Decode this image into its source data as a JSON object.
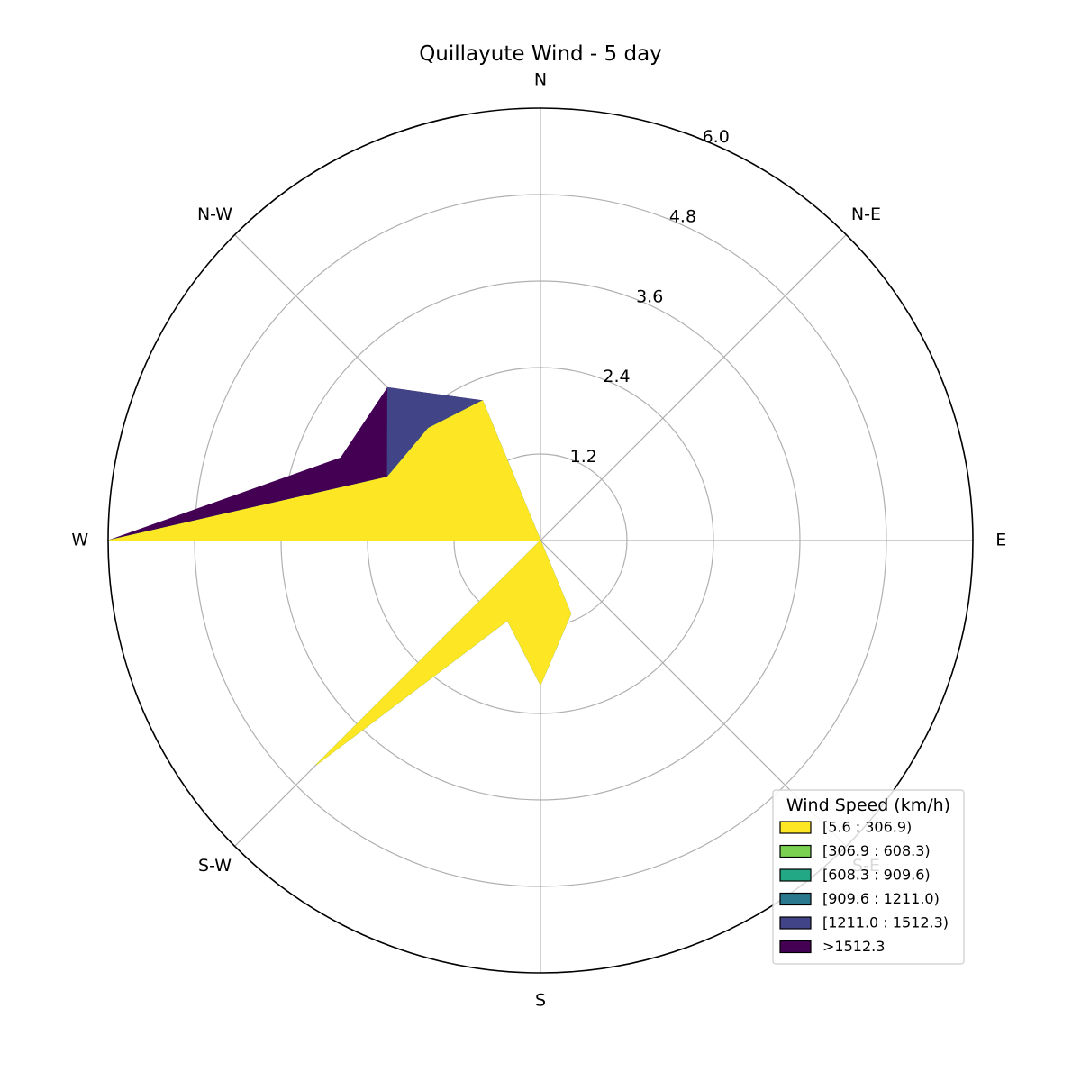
{
  "chart_data": {
    "type": "windrose",
    "title": "Quillayute Wind - 5 day",
    "direction_labels": [
      "N",
      "N-E",
      "E",
      "S-E",
      "S",
      "S-W",
      "W",
      "N-W"
    ],
    "radial_ticks": [
      "1.2",
      "2.4",
      "3.6",
      "4.8",
      "6.0"
    ],
    "rmax": 6.0,
    "grid": true,
    "legend": {
      "title": "Wind Speed (km/h)",
      "placement": "bottom-right",
      "entries": [
        {
          "label": "[5.6 : 306.9)",
          "color": "#fde725"
        },
        {
          "label": "[306.9 : 608.3)",
          "color": "#7ad151"
        },
        {
          "label": "[608.3 : 909.6)",
          "color": "#22a884"
        },
        {
          "label": "[909.6 : 1211.0)",
          "color": "#2a788e"
        },
        {
          "label": "[1211.0 : 1512.3)",
          "color": "#414487"
        },
        {
          "label": ">1512.3",
          "color": "#440154"
        }
      ]
    },
    "directions_deg": [
      0,
      22.5,
      45,
      67.5,
      90,
      112.5,
      135,
      157.5,
      180,
      202.5,
      225,
      247.5,
      270,
      292.5,
      315,
      337.5
    ],
    "series": [
      {
        "name": "[5.6 : 306.9)",
        "color": "#fde725",
        "values": [
          0,
          0,
          0,
          0,
          0,
          0,
          0,
          1.1,
          2.0,
          1.2,
          4.4,
          0,
          6.0,
          2.3,
          2.2,
          2.1
        ]
      },
      {
        "name": "[306.9 : 608.3)",
        "color": "#7ad151",
        "values": [
          0,
          0,
          0,
          0,
          0,
          0,
          0,
          1.1,
          2.0,
          1.2,
          4.4,
          0,
          6.0,
          2.3,
          2.2,
          2.1
        ]
      },
      {
        "name": "[608.3 : 909.6)",
        "color": "#22a884",
        "values": [
          0,
          0,
          0,
          0,
          0,
          0,
          0,
          1.1,
          2.0,
          1.2,
          4.4,
          0,
          6.0,
          2.3,
          2.2,
          2.1
        ]
      },
      {
        "name": "[909.6 : 1211.0)",
        "color": "#2a788e",
        "values": [
          0,
          0,
          0,
          0,
          0,
          0,
          0,
          1.1,
          2.0,
          1.2,
          4.4,
          0,
          6.0,
          2.3,
          2.2,
          2.1
        ]
      },
      {
        "name": "[1211.0 : 1512.3)",
        "color": "#414487",
        "values": [
          0,
          0,
          0,
          0,
          0,
          0,
          0,
          1.1,
          2.0,
          1.2,
          4.4,
          0,
          6.0,
          2.3,
          3.0,
          2.1
        ]
      },
      {
        "name": ">1512.3",
        "color": "#440154",
        "values": [
          0,
          0,
          0,
          0,
          0,
          0,
          0,
          1.1,
          2.0,
          1.2,
          4.4,
          0,
          6.0,
          3.0,
          3.0,
          2.1
        ]
      }
    ]
  }
}
